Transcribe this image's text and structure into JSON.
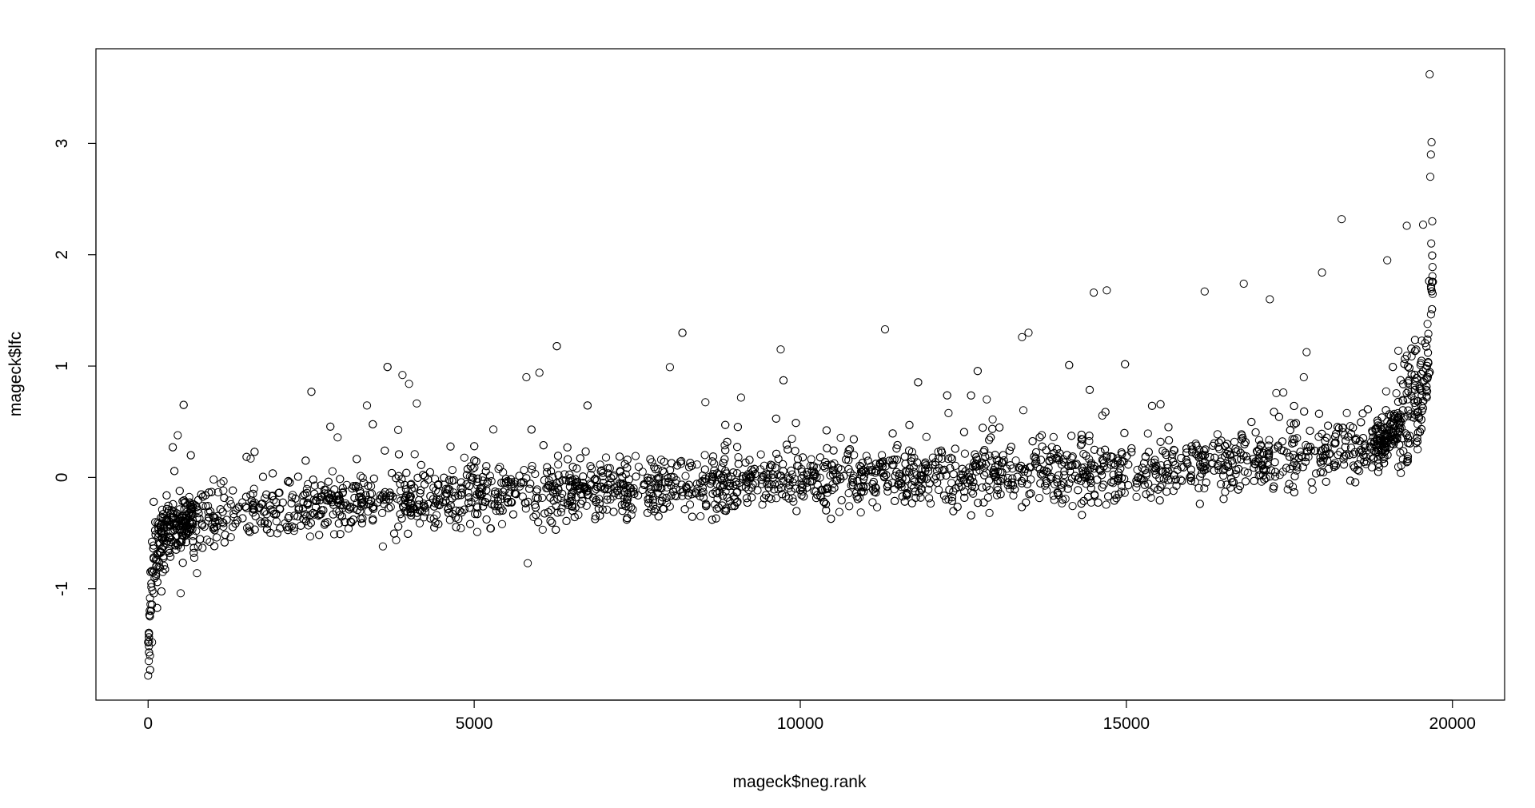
{
  "chart_data": {
    "type": "scatter",
    "title": "",
    "xlabel": "mageck$neg.rank",
    "ylabel": "mageck$lfc",
    "xlim": [
      -800,
      20800
    ],
    "ylim": [
      -2.0,
      3.85
    ],
    "x_ticks": [
      0,
      5000,
      10000,
      15000,
      20000
    ],
    "y_ticks": [
      -1,
      0,
      1,
      2,
      3
    ],
    "x_tick_labels": [
      "0",
      "5000",
      "10000",
      "15000",
      "20000"
    ],
    "y_tick_labels": [
      "-1",
      "0",
      "1",
      "2",
      "3"
    ],
    "grid": false,
    "legend": "none",
    "marker": "open-circle",
    "color": "#000000",
    "n_points_approx": 19700,
    "trend": {
      "description": "LFC increases monotonically with rank; steep rise at both tails",
      "rank": [
        0,
        50,
        150,
        300,
        600,
        1000,
        2000,
        3000,
        5000,
        7500,
        10000,
        12500,
        15000,
        17000,
        18000,
        18800,
        19200,
        19500,
        19650,
        19700
      ],
      "median_lfc": [
        -1.5,
        -0.9,
        -0.62,
        -0.5,
        -0.42,
        -0.37,
        -0.3,
        -0.25,
        -0.17,
        -0.1,
        -0.02,
        0.02,
        0.06,
        0.12,
        0.18,
        0.3,
        0.45,
        0.7,
        1.2,
        2.0
      ]
    },
    "notable_points": [
      {
        "x": 19650,
        "y": 3.62
      },
      {
        "x": 19680,
        "y": 3.01
      },
      {
        "x": 19670,
        "y": 2.9
      },
      {
        "x": 19660,
        "y": 2.7
      },
      {
        "x": 19690,
        "y": 2.3
      },
      {
        "x": 18300,
        "y": 2.32
      },
      {
        "x": 19300,
        "y": 2.26
      },
      {
        "x": 19550,
        "y": 2.27
      },
      {
        "x": 19000,
        "y": 1.95
      },
      {
        "x": 18000,
        "y": 1.84
      },
      {
        "x": 16200,
        "y": 1.67
      },
      {
        "x": 16800,
        "y": 1.74
      },
      {
        "x": 17200,
        "y": 1.6
      },
      {
        "x": 14500,
        "y": 1.66
      },
      {
        "x": 14700,
        "y": 1.68
      },
      {
        "x": 11300,
        "y": 1.33
      },
      {
        "x": 13400,
        "y": 1.26
      },
      {
        "x": 13500,
        "y": 1.3
      },
      {
        "x": 9700,
        "y": 1.15
      },
      {
        "x": 8000,
        "y": 0.99
      },
      {
        "x": 3900,
        "y": 0.92
      },
      {
        "x": 4000,
        "y": 0.84
      },
      {
        "x": 6000,
        "y": 0.94
      },
      {
        "x": 5800,
        "y": 0.9
      },
      {
        "x": 0,
        "y": -1.78
      },
      {
        "x": 10,
        "y": -1.65
      },
      {
        "x": 30,
        "y": -1.6
      },
      {
        "x": 60,
        "y": -1.48
      },
      {
        "x": 500,
        "y": -1.04
      },
      {
        "x": 750,
        "y": -0.86
      },
      {
        "x": 3600,
        "y": -0.62
      },
      {
        "x": 6050,
        "y": -0.47
      },
      {
        "x": 10600,
        "y": -0.31
      },
      {
        "x": 12900,
        "y": -0.32
      }
    ]
  }
}
